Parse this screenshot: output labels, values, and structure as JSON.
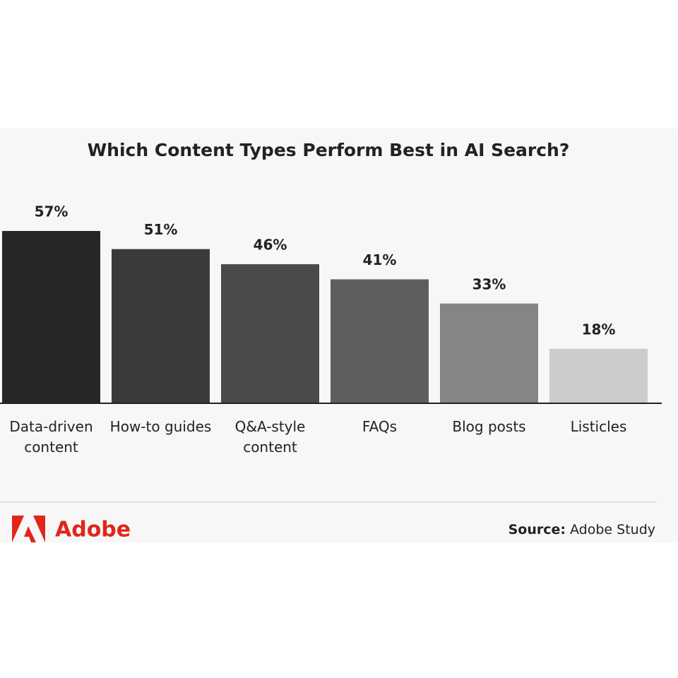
{
  "chart_data": {
    "type": "bar",
    "title": "Which Content Types Perform Best in AI Search?",
    "categories": [
      "Data-driven content",
      "How-to guides",
      "Q&A-style content",
      "FAQs",
      "Blog posts",
      "Listicles"
    ],
    "values": [
      57,
      51,
      46,
      41,
      33,
      18
    ],
    "value_labels": [
      "57%",
      "51%",
      "46%",
      "41%",
      "33%",
      "18%"
    ],
    "colors": [
      "#262626",
      "#3a3a3a",
      "#4a4a4a",
      "#5e5e5e",
      "#858585",
      "#cccccc"
    ],
    "brand": "Adobe",
    "source_label": "Source:",
    "source": "Adobe Study"
  }
}
